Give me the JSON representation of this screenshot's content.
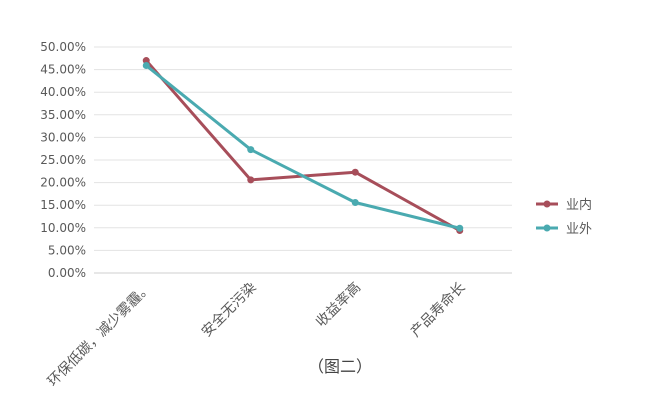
{
  "chart_data": {
    "type": "line",
    "categories": [
      "环保低碳，减少雾霾。",
      "安全无污染",
      "收益率高",
      "产品寿命长"
    ],
    "series": [
      {
        "name": "业内",
        "color": "#A74E5A",
        "values": [
          0.47,
          0.206,
          0.223,
          0.094
        ]
      },
      {
        "name": "业外",
        "color": "#4AAAB0",
        "values": [
          0.459,
          0.273,
          0.156,
          0.099
        ]
      }
    ],
    "y_ticks": [
      "0.00%",
      "5.00%",
      "10.00%",
      "15.00%",
      "20.00%",
      "25.00%",
      "30.00%",
      "35.00%",
      "40.00%",
      "45.00%",
      "50.00%"
    ],
    "ylim": [
      0,
      0.5
    ],
    "grid": true,
    "legend_position": "right",
    "caption": "（图二）"
  }
}
